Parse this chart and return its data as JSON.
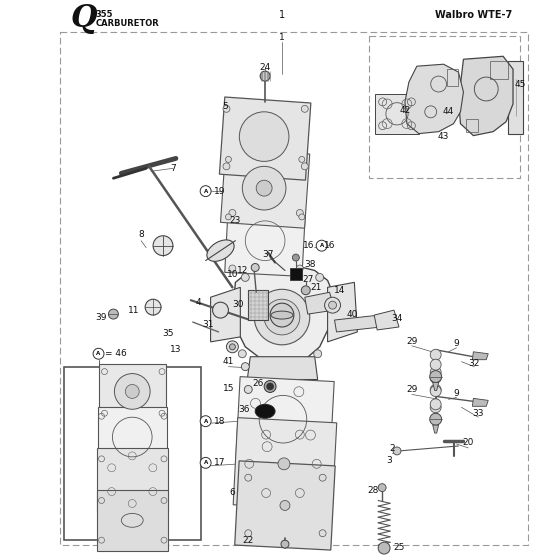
{
  "title_letter": "Q",
  "title_number": "355",
  "title_text": "CARBURETOR",
  "brand": "Walbro WTE-7",
  "page_number": "1",
  "bg_color": "#ffffff",
  "fig_width": 5.6,
  "fig_height": 5.6,
  "dpi": 100
}
